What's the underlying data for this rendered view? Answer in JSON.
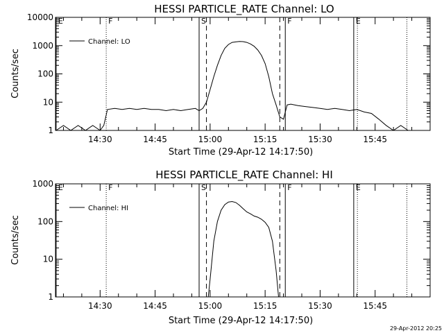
{
  "timestamp": "29-Apr-2012 20:25",
  "chart_data": [
    {
      "type": "line",
      "title": "HESSI PARTICLE_RATE Channel: LO",
      "xlabel": "Start Time (29-Apr-12 14:17:50)",
      "ylabel": "Counts/sec",
      "y_scale": "log",
      "xlim": [
        "14:17:50",
        "16:00:00"
      ],
      "ylim": [
        1,
        10000
      ],
      "x_ticks": [
        "14:30",
        "14:45",
        "15:00",
        "15:15",
        "15:30",
        "15:45"
      ],
      "y_ticks": [
        "1",
        "10",
        "100",
        "1000",
        "10000"
      ],
      "legend": {
        "position": "top-left",
        "entries": [
          "Channel: LO"
        ]
      },
      "flag_markers": [
        {
          "label": "E",
          "time": "14:18:00",
          "style": "solid"
        },
        {
          "label": "F",
          "time": "14:31:40",
          "style": "dotted"
        },
        {
          "label": "S",
          "time": "14:57:00",
          "style": "solid"
        },
        {
          "label": "F",
          "time": "15:20:30",
          "style": "solid"
        },
        {
          "label": "E",
          "time": "15:39:10",
          "style": "solid"
        }
      ],
      "unlabeled_markers": [
        {
          "time": "14:59:00",
          "style": "dashed"
        },
        {
          "time": "15:19:00",
          "style": "dashed"
        },
        {
          "time": "15:40:10",
          "style": "dotted"
        },
        {
          "time": "15:53:40",
          "style": "dotted"
        }
      ],
      "series": [
        {
          "x": [
            "14:18",
            "14:20",
            "14:22",
            "14:24",
            "14:26",
            "14:28",
            "14:30",
            "14:31",
            "14:32",
            "14:34",
            "14:36",
            "14:38",
            "14:40",
            "14:42",
            "14:44",
            "14:46",
            "14:48",
            "14:50",
            "14:52",
            "14:54",
            "14:56",
            "14:57",
            "14:58",
            "14:59",
            "15:00",
            "15:01",
            "15:02",
            "15:03",
            "15:04",
            "15:05",
            "15:06",
            "15:07",
            "15:08",
            "15:09",
            "15:10",
            "15:11",
            "15:12",
            "15:13",
            "15:14",
            "15:15",
            "15:16",
            "15:17",
            "15:18",
            "15:19",
            "15:20",
            "15:21",
            "15:22",
            "15:24",
            "15:26",
            "15:28",
            "15:30",
            "15:32",
            "15:34",
            "15:36",
            "15:38",
            "15:40",
            "15:42",
            "15:44",
            "15:46",
            "15:48",
            "15:50",
            "15:52",
            "15:54",
            "15:56",
            "15:58"
          ],
          "values": [
            1,
            1.5,
            1,
            1.5,
            1,
            1.5,
            1,
            1.5,
            5.5,
            6,
            5.5,
            6,
            5.5,
            6,
            5.5,
            5.5,
            5,
            5.5,
            5,
            5.5,
            6,
            5,
            6,
            10,
            28,
            80,
            200,
            450,
            800,
            1100,
            1300,
            1350,
            1400,
            1380,
            1300,
            1150,
            950,
            700,
            450,
            230,
            80,
            20,
            8,
            3,
            2.5,
            8,
            8.5,
            7.5,
            7,
            6.5,
            6,
            5.5,
            6,
            5.5,
            5,
            5.5,
            4.5,
            4,
            2.5,
            1.5,
            1,
            1.5,
            1,
            1,
            1
          ]
        }
      ]
    },
    {
      "type": "line",
      "title": "HESSI PARTICLE_RATE Channel: HI",
      "xlabel": "Start Time (29-Apr-12 14:17:50)",
      "ylabel": "Counts/sec",
      "y_scale": "log",
      "xlim": [
        "14:17:50",
        "16:00:00"
      ],
      "ylim": [
        1,
        1000
      ],
      "x_ticks": [
        "14:30",
        "14:45",
        "15:00",
        "15:15",
        "15:30",
        "15:45"
      ],
      "y_ticks": [
        "1",
        "10",
        "100",
        "1000"
      ],
      "legend": {
        "position": "top-left",
        "entries": [
          "Channel: HI"
        ]
      },
      "flag_markers": [
        {
          "label": "E",
          "time": "14:18:00",
          "style": "solid"
        },
        {
          "label": "F",
          "time": "14:31:40",
          "style": "dotted"
        },
        {
          "label": "S",
          "time": "14:57:00",
          "style": "solid"
        },
        {
          "label": "F",
          "time": "15:20:30",
          "style": "solid"
        },
        {
          "label": "E",
          "time": "15:39:10",
          "style": "solid"
        }
      ],
      "unlabeled_markers": [
        {
          "time": "14:59:00",
          "style": "dashed"
        },
        {
          "time": "15:19:00",
          "style": "dashed"
        },
        {
          "time": "15:40:10",
          "style": "dotted"
        },
        {
          "time": "15:53:40",
          "style": "dotted"
        }
      ],
      "series": [
        {
          "x": [
            "14:59:30",
            "15:00",
            "15:01",
            "15:02",
            "15:03",
            "15:04",
            "15:05",
            "15:06",
            "15:07",
            "15:08",
            "15:09",
            "15:10",
            "15:11",
            "15:12",
            "15:13",
            "15:14",
            "15:15",
            "15:16",
            "15:17",
            "15:18",
            "15:18:40"
          ],
          "values": [
            1,
            3,
            30,
            100,
            200,
            280,
            330,
            340,
            320,
            270,
            220,
            180,
            160,
            140,
            130,
            115,
            95,
            70,
            30,
            5,
            1
          ]
        }
      ]
    }
  ]
}
